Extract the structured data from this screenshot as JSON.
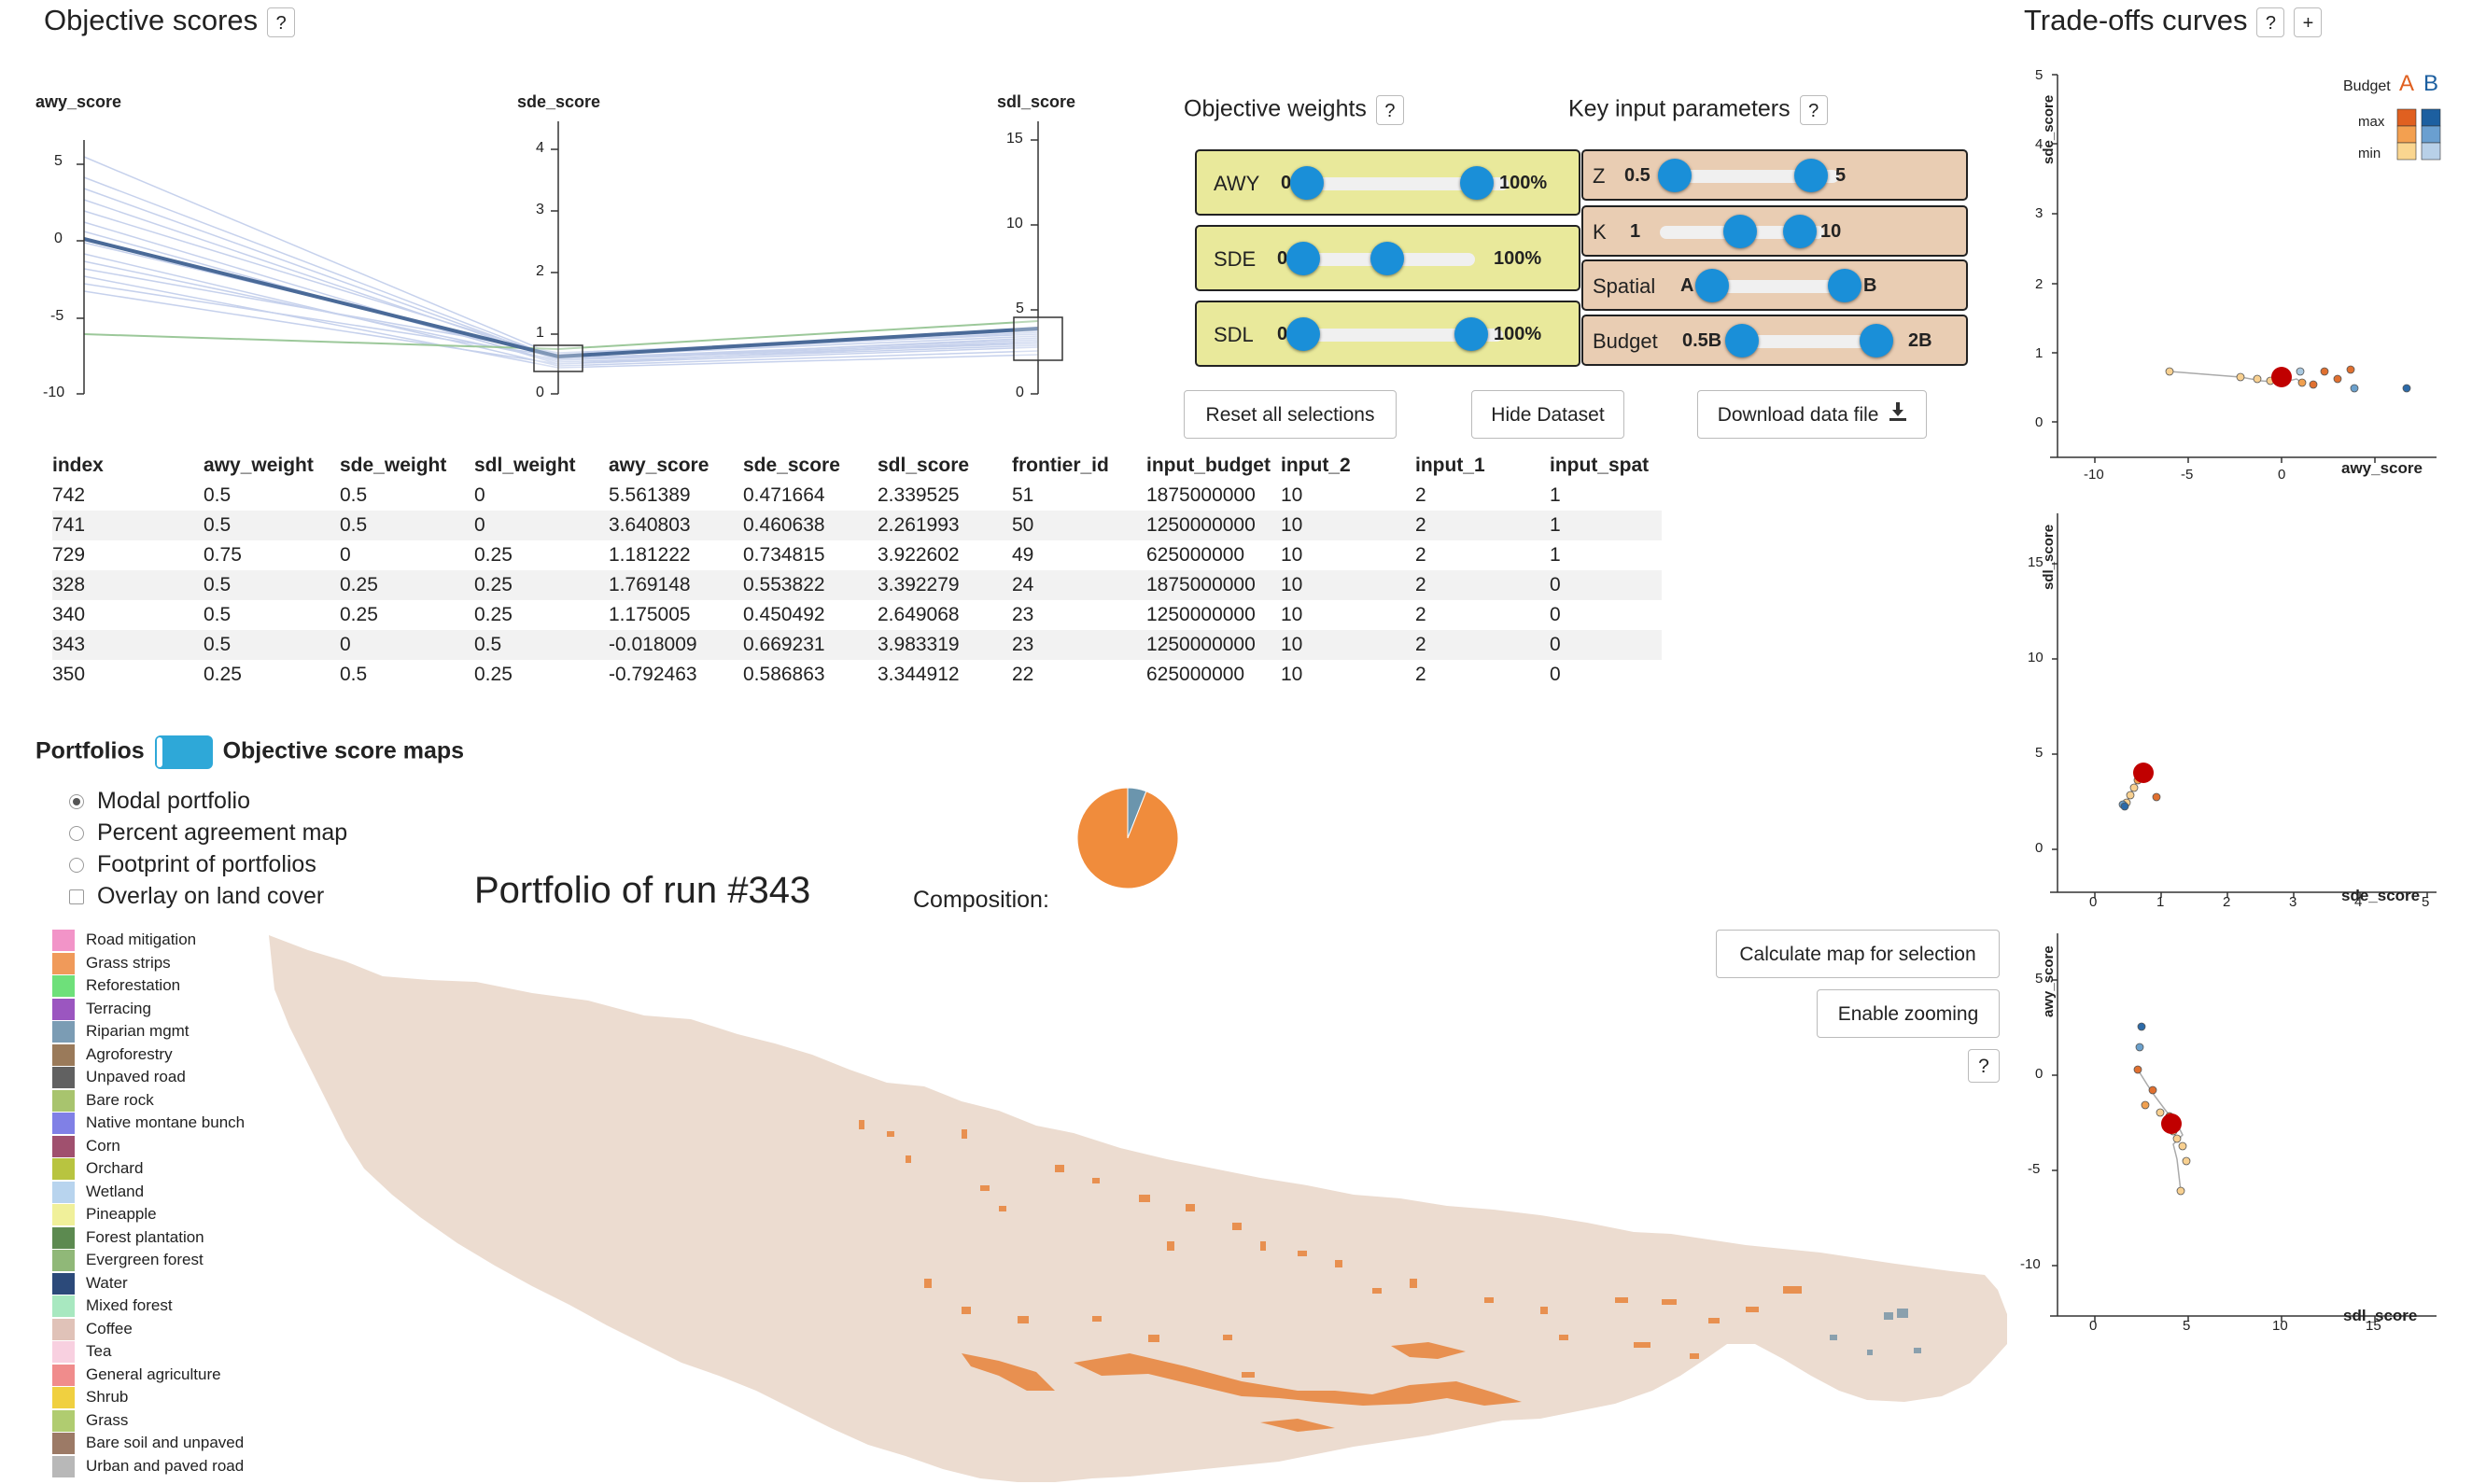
{
  "objective_scores": {
    "title": "Objective scores",
    "help": "?",
    "axes": [
      {
        "name": "awy_score",
        "ticks": [
          "5",
          "0",
          "-5",
          "-10"
        ]
      },
      {
        "name": "sde_score",
        "ticks": [
          "4",
          "3",
          "2",
          "1",
          "0"
        ]
      },
      {
        "name": "sdl_score",
        "ticks": [
          "15",
          "10",
          "5",
          "0"
        ]
      }
    ]
  },
  "weights": {
    "title": "Objective weights",
    "help": "?",
    "sliders": [
      {
        "label": "AWY",
        "min": "0",
        "max": "100%",
        "low": 0.0,
        "high": 1.0
      },
      {
        "label": "SDE",
        "min": "0",
        "max": "100%",
        "low": 0.0,
        "high": 0.5
      },
      {
        "label": "SDL",
        "min": "0",
        "max": "100%",
        "low": 0.0,
        "high": 1.0
      }
    ]
  },
  "key_params": {
    "title": "Key input parameters",
    "help": "?",
    "sliders": [
      {
        "label": "Z",
        "min": "0.5",
        "max": "5"
      },
      {
        "label": "K",
        "min": "1",
        "max": "10"
      },
      {
        "label": "Spatial",
        "min": "A",
        "max": "B"
      },
      {
        "label": "Budget",
        "min": "0.5B",
        "max": "2B"
      }
    ]
  },
  "buttons": {
    "reset": "Reset all selections",
    "hide": "Hide Dataset",
    "download": "Download data file",
    "calc_map": "Calculate map for selection",
    "zoom": "Enable zooming",
    "help": "?"
  },
  "table": {
    "columns": [
      "index",
      "awy_weight",
      "sde_weight",
      "sdl_weight",
      "awy_score",
      "sde_score",
      "sdl_score",
      "frontier_id",
      "input_budget",
      "input_2",
      "input_1",
      "input_spat"
    ],
    "rows": [
      [
        "742",
        "0.5",
        "0.5",
        "0",
        "5.561389",
        "0.471664",
        "2.339525",
        "51",
        "1875000000",
        "10",
        "2",
        "1"
      ],
      [
        "741",
        "0.5",
        "0.5",
        "0",
        "3.640803",
        "0.460638",
        "2.261993",
        "50",
        "1250000000",
        "10",
        "2",
        "1"
      ],
      [
        "729",
        "0.75",
        "0",
        "0.25",
        "1.181222",
        "0.734815",
        "3.922602",
        "49",
        "625000000",
        "10",
        "2",
        "1"
      ],
      [
        "328",
        "0.5",
        "0.25",
        "0.25",
        "1.769148",
        "0.553822",
        "3.392279",
        "24",
        "1875000000",
        "10",
        "2",
        "0"
      ],
      [
        "340",
        "0.5",
        "0.25",
        "0.25",
        "1.175005",
        "0.450492",
        "2.649068",
        "23",
        "1250000000",
        "10",
        "2",
        "0"
      ],
      [
        "343",
        "0.5",
        "0",
        "0.5",
        "-0.018009",
        "0.669231",
        "3.983319",
        "23",
        "1250000000",
        "10",
        "2",
        "0"
      ],
      [
        "350",
        "0.25",
        "0.5",
        "0.25",
        "-0.792463",
        "0.586863",
        "3.344912",
        "22",
        "625000000",
        "10",
        "2",
        "0"
      ]
    ]
  },
  "toggle": {
    "left": "Portfolios",
    "right": "Objective score maps"
  },
  "radios": [
    {
      "label": "Modal portfolio",
      "selected": true
    },
    {
      "label": "Percent agreement map",
      "selected": false
    },
    {
      "label": "Footprint of portfolios",
      "selected": false
    }
  ],
  "overlay": {
    "label": "Overlay on land cover",
    "checked": false
  },
  "portfolio_title": "Portfolio of run #343",
  "composition_label": "Composition:",
  "composition": [
    {
      "name": "Grass strips",
      "fraction": 0.94,
      "color": "#f08c3c"
    },
    {
      "name": "Riparian mgmt",
      "fraction": 0.06,
      "color": "#6b95ad"
    }
  ],
  "legend": [
    {
      "label": "Road mitigation",
      "color": "#f294c8"
    },
    {
      "label": "Grass strips",
      "color": "#f09a5a"
    },
    {
      "label": "Reforestation",
      "color": "#6ee07a"
    },
    {
      "label": "Terracing",
      "color": "#9b56c0"
    },
    {
      "label": "Riparian mgmt",
      "color": "#7b9cb4"
    },
    {
      "label": "Agroforestry",
      "color": "#9a7a5a"
    },
    {
      "label": "Unpaved road",
      "color": "#616161"
    },
    {
      "label": "Bare rock",
      "color": "#a8c46e"
    },
    {
      "label": "Native montane bunch",
      "color": "#8080e6"
    },
    {
      "label": "Corn",
      "color": "#a0506e"
    },
    {
      "label": "Orchard",
      "color": "#b8c440"
    },
    {
      "label": "Wetland",
      "color": "#b8d4ee"
    },
    {
      "label": "Pineapple",
      "color": "#f0f09a"
    },
    {
      "label": "Forest plantation",
      "color": "#5c8a50"
    },
    {
      "label": "Evergreen forest",
      "color": "#90b878"
    },
    {
      "label": "Water",
      "color": "#2c4a7a"
    },
    {
      "label": "Mixed forest",
      "color": "#a8e8c0"
    },
    {
      "label": "Coffee",
      "color": "#e0c2b8"
    },
    {
      "label": "Tea",
      "color": "#f8d0e0"
    },
    {
      "label": "General agriculture",
      "color": "#f08c8c"
    },
    {
      "label": "Shrub",
      "color": "#f0d040"
    },
    {
      "label": "Grass",
      "color": "#b0cc70"
    },
    {
      "label": "Bare soil and unpaved",
      "color": "#9c7a66"
    },
    {
      "label": "Urban and paved road",
      "color": "#b8b8b8"
    }
  ],
  "tradeoffs": {
    "title": "Trade-offs curves",
    "help": "?",
    "add": "+",
    "legend_title": "Budget",
    "legend_a": "A",
    "legend_b": "B",
    "legend_max": "max",
    "legend_min": "min",
    "plots": [
      {
        "xlabel": "awy_score",
        "ylabel": "sde_score",
        "xticks": [
          "-10",
          "-5",
          "0",
          "5"
        ],
        "yticks": [
          "5",
          "4",
          "3",
          "2",
          "1",
          "0"
        ]
      },
      {
        "xlabel": "sde_score",
        "ylabel": "sdl_score",
        "xticks": [
          "0",
          "1",
          "2",
          "3",
          "4",
          "5"
        ],
        "yticks": [
          "15",
          "10",
          "5",
          "0"
        ]
      },
      {
        "xlabel": "sdl_score",
        "ylabel": "awy_score",
        "xticks": [
          "0",
          "5",
          "10",
          "15"
        ],
        "yticks": [
          "5",
          "0",
          "-5",
          "-10"
        ]
      }
    ]
  }
}
